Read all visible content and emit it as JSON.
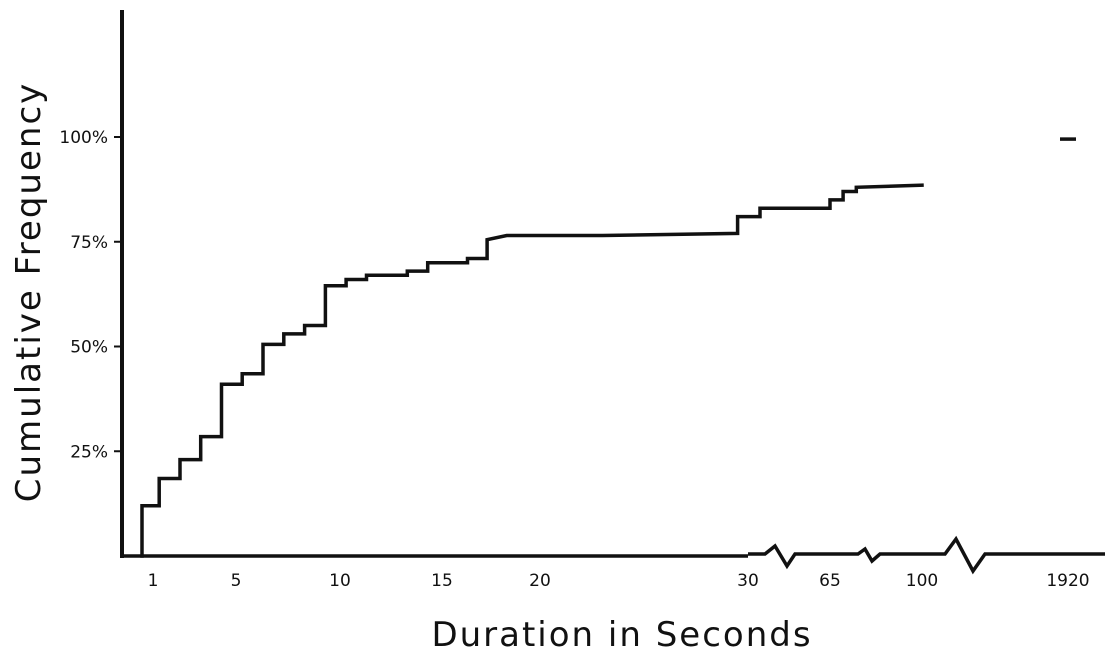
{
  "chart_data": {
    "type": "line",
    "xlabel": "Duration in Seconds",
    "ylabel": "Cumulative Frequency",
    "y_ticks": [
      "25%",
      "50%",
      "75%",
      "100%"
    ],
    "y_tick_values": [
      25,
      50,
      75,
      100
    ],
    "ylim": [
      0,
      100
    ],
    "x_axis_breaks": true,
    "x_ticks": [
      "1",
      "5",
      "10",
      "15",
      "20",
      "30",
      "65",
      "100",
      "1920"
    ],
    "x_tick_values": [
      1,
      5,
      10,
      15,
      20,
      30,
      65,
      100,
      1920
    ],
    "series": [
      {
        "x": [
          0.8,
          0.8,
          1.3,
          1.3,
          2.3,
          2.3,
          3.3,
          3.3,
          4.3,
          4.3,
          5.3,
          5.3,
          6.3,
          6.3,
          7.3,
          7.3,
          8.3,
          8.3,
          9.3,
          9.3,
          10.3,
          10.3,
          11.3,
          11.3,
          13.3,
          13.3,
          14.3,
          14.3,
          16.3,
          16.3,
          17.3,
          17.3,
          18.3,
          23,
          29.5,
          29.5,
          30.5,
          30.5,
          65,
          65,
          70,
          70,
          75,
          75,
          100
        ],
        "y": [
          0,
          12,
          12,
          18.5,
          18.5,
          23,
          23,
          28.5,
          28.5,
          41,
          41,
          43.5,
          43.5,
          50.5,
          50.5,
          53,
          53,
          55,
          55,
          64.5,
          64.5,
          66,
          66,
          67,
          67,
          68,
          68,
          70,
          70,
          71,
          71,
          75.5,
          76.5,
          76.5,
          77,
          81,
          81,
          83,
          83,
          85,
          85,
          87,
          87,
          88,
          88.5
        ]
      },
      {
        "x": [
          1920
        ],
        "y": [
          99.5
        ]
      }
    ]
  }
}
